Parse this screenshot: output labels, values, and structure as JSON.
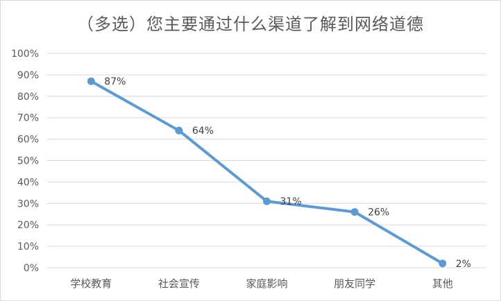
{
  "chart_data": {
    "type": "line",
    "title": "（多选）您主要通过什么渠道了解到网络道德",
    "categories": [
      "学校教育",
      "社会宣传",
      "家庭影响",
      "朋友同学",
      "其他"
    ],
    "series": [
      {
        "values": [
          87,
          64,
          31,
          26,
          2
        ],
        "labels": [
          "87%",
          "64%",
          "31%",
          "26%",
          "2%"
        ]
      }
    ],
    "yticks": [
      "0%",
      "10%",
      "20%",
      "30%",
      "40%",
      "50%",
      "60%",
      "70%",
      "80%",
      "90%",
      "100%"
    ],
    "ylim": [
      0,
      100
    ],
    "xlabel": "",
    "ylabel": "",
    "grid": true,
    "legend": "none",
    "line_color": "#5b9bd5",
    "grid_color": "#d9d9d9",
    "text_color": "#595959"
  }
}
